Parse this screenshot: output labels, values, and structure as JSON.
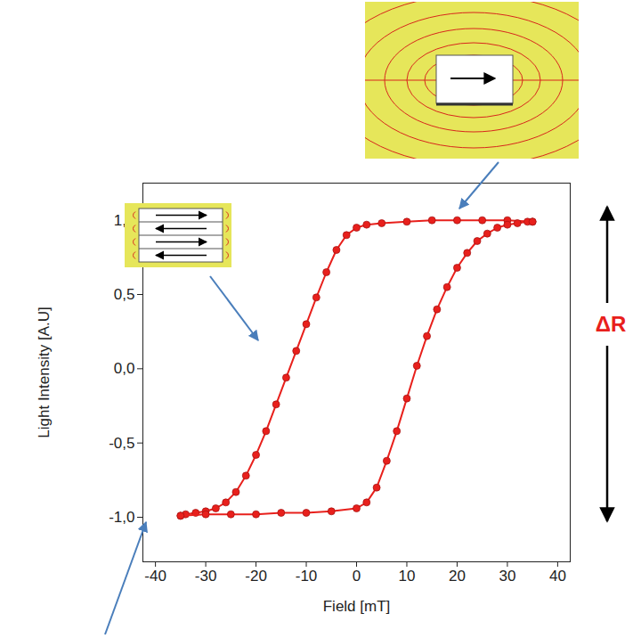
{
  "chart_data": {
    "type": "line",
    "x_label": "Field [mT]",
    "y_label": "Light Intensity [A.U]",
    "annotation": "ΔR",
    "xlim": [
      -42.5,
      42.5
    ],
    "xticks": [
      -40,
      -30,
      -20,
      -10,
      0,
      10,
      20,
      30,
      40
    ],
    "ylim": [
      -1.3,
      1.25
    ],
    "yticks": [
      {
        "value": -1,
        "label": "-1,0"
      },
      {
        "value": -0.5,
        "label": "-0,5"
      },
      {
        "value": 0,
        "label": "0,0"
      },
      {
        "value": 0.5,
        "label": "0,5"
      },
      {
        "value": 1,
        "label": "1,0"
      }
    ],
    "grid": false,
    "series": [
      {
        "color": "#e8201c",
        "marker": "circle",
        "line_style": "solid",
        "x": [
          35,
          30,
          25,
          20,
          15,
          10,
          5,
          2,
          0,
          -2,
          -4,
          -6,
          -8,
          -10,
          -12,
          -14,
          -16,
          -18,
          -20,
          -22,
          -24,
          -26,
          -28,
          -30,
          -32,
          -34,
          -35
        ],
        "values": [
          0.99,
          1.0,
          1.0,
          1.0,
          1.0,
          0.99,
          0.98,
          0.97,
          0.95,
          0.9,
          0.8,
          0.65,
          0.48,
          0.3,
          0.12,
          -0.06,
          -0.24,
          -0.42,
          -0.58,
          -0.72,
          -0.83,
          -0.9,
          -0.94,
          -0.96,
          -0.97,
          -0.98,
          -0.99
        ]
      },
      {
        "color": "#e8201c",
        "marker": "circle",
        "line_style": "solid",
        "x": [
          -35,
          -30,
          -25,
          -20,
          -15,
          -10,
          -5,
          0,
          2,
          4,
          6,
          8,
          10,
          12,
          14,
          16,
          18,
          20,
          22,
          24,
          26,
          28,
          30,
          32,
          34,
          35
        ],
        "values": [
          -0.99,
          -0.98,
          -0.98,
          -0.98,
          -0.97,
          -0.97,
          -0.96,
          -0.94,
          -0.9,
          -0.8,
          -0.62,
          -0.42,
          -0.2,
          0.02,
          0.22,
          0.4,
          0.55,
          0.68,
          0.78,
          0.86,
          0.91,
          0.95,
          0.97,
          0.98,
          0.99,
          0.99
        ]
      }
    ]
  }
}
